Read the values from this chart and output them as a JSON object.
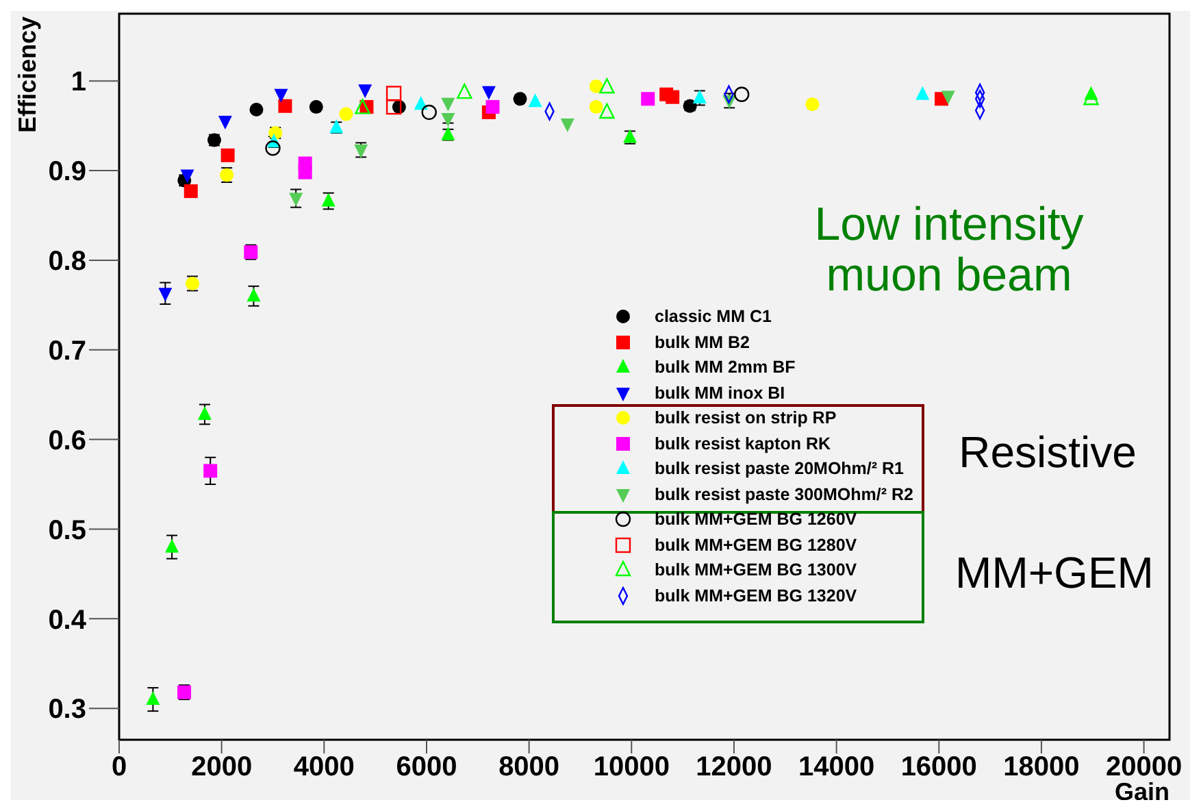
{
  "chart_data": {
    "type": "scatter",
    "xlabel": "Gain",
    "ylabel": "Efficiency",
    "xlim": [
      0,
      20500
    ],
    "ylim": [
      0.265,
      1.075
    ],
    "xticks": [
      0,
      2000,
      4000,
      6000,
      8000,
      10000,
      12000,
      14000,
      16000,
      18000,
      20000
    ],
    "yticks": [
      0.3,
      0.4,
      0.5,
      0.6,
      0.7,
      0.8,
      0.9,
      1
    ],
    "grid": false,
    "legend": "right",
    "annotations": [
      "Low intensity muon beam",
      "Resistive",
      "MM+GEM"
    ],
    "series": [
      {
        "name": "classic MM C1",
        "color": "#000000",
        "marker": "circle",
        "x": [
          1273,
          1857,
          2679,
          3846,
          5464,
          7825,
          11140
        ],
        "values": [
          0.889,
          0.934,
          0.968,
          0.971,
          0.971,
          0.98,
          0.972
        ],
        "errors": [
          0.006,
          0.006,
          null,
          null,
          null,
          null,
          0.005
        ]
      },
      {
        "name": "bulk MM B2",
        "color": "#ff0000",
        "marker": "square",
        "x": [
          1400,
          2120,
          3240,
          4830,
          7215,
          10680,
          10800,
          16050
        ],
        "values": [
          0.877,
          0.917,
          0.972,
          0.971,
          0.965,
          0.985,
          0.982,
          0.98
        ],
        "errors": [
          0.006,
          null,
          null,
          null,
          null,
          null,
          null,
          null
        ]
      },
      {
        "name": "bulk MM 2mm BF",
        "color": "#00ff00",
        "marker": "triangle",
        "x": [
          660,
          1030,
          1670,
          2625,
          4085,
          6420,
          9970,
          18970
        ],
        "values": [
          0.31,
          0.48,
          0.628,
          0.76,
          0.866,
          0.94,
          0.937,
          0.985
        ],
        "errors": [
          0.013,
          0.013,
          0.011,
          0.011,
          0.009,
          0.006,
          0.007,
          null
        ]
      },
      {
        "name": "bulk MM inox BI",
        "color": "#0000ff",
        "marker": "triangle-down",
        "x": [
          900,
          1330,
          2070,
          3160,
          4800,
          7215
        ],
        "values": [
          0.763,
          0.895,
          0.955,
          0.985,
          0.99,
          0.988
        ],
        "errors": [
          0.012,
          null,
          null,
          null,
          null,
          null
        ]
      },
      {
        "name": "bulk resist on strip RP",
        "color": "#ffff00",
        "marker": "circle",
        "x": [
          1430,
          2100,
          3050,
          4430,
          9310,
          9310,
          13530
        ],
        "values": [
          0.774,
          0.895,
          0.942,
          0.963,
          0.994,
          0.971,
          0.974
        ],
        "errors": [
          0.008,
          0.008,
          0.006,
          null,
          null,
          null,
          null
        ]
      },
      {
        "name": "bulk resist kapton RK",
        "color": "#ff00ff",
        "marker": "square",
        "x": [
          1270,
          1780,
          2570,
          3630,
          3630,
          7290,
          10320
        ],
        "values": [
          0.318,
          0.565,
          0.809,
          0.908,
          0.898,
          0.971,
          0.98
        ],
        "errors": [
          0.008,
          0.015,
          0.008,
          null,
          null,
          null,
          null
        ]
      },
      {
        "name": "bulk resist paste 20MOhm/² R1",
        "color": "#00ffff",
        "marker": "triangle",
        "x": [
          3020,
          4240,
          5890,
          8120,
          11330,
          15680
        ],
        "values": [
          0.932,
          0.948,
          0.974,
          0.977,
          0.981,
          0.985
        ],
        "errors": [
          0.006,
          0.006,
          null,
          null,
          0.008,
          null
        ]
      },
      {
        "name": "bulk resist paste 300MOhm/² R2",
        "color": "#55cc55",
        "marker": "triangle-down",
        "x": [
          3450,
          4720,
          6420,
          6420,
          8750,
          11910,
          16180
        ],
        "values": [
          0.869,
          0.923,
          0.975,
          0.958,
          0.952,
          0.978,
          0.983
        ],
        "errors": [
          0.01,
          0.008,
          null,
          0.005,
          null,
          0.008,
          null
        ]
      },
      {
        "name": "bulk MM+GEM BG 1260V",
        "color": "#000000",
        "marker": "circle-open",
        "x": [
          3000,
          6050,
          12150
        ],
        "values": [
          0.925,
          0.965,
          0.985
        ]
      },
      {
        "name": "bulk MM+GEM BG 1280V",
        "color": "#ff0000",
        "marker": "square-open",
        "x": [
          5360,
          5360
        ],
        "values": [
          0.986,
          0.971
        ]
      },
      {
        "name": "bulk MM+GEM BG 1300V",
        "color": "#00ff00",
        "marker": "triangle-open",
        "x": [
          4750,
          6740,
          9520,
          9520,
          18970
        ],
        "values": [
          0.97,
          0.987,
          0.993,
          0.965,
          0.98
        ]
      },
      {
        "name": "bulk MM+GEM BG 1320V",
        "color": "#0000ff",
        "marker": "diamond-open",
        "x": [
          8400,
          11900,
          16800,
          16800,
          16800
        ],
        "values": [
          0.966,
          0.985,
          0.987,
          0.98,
          0.967
        ]
      }
    ]
  }
}
